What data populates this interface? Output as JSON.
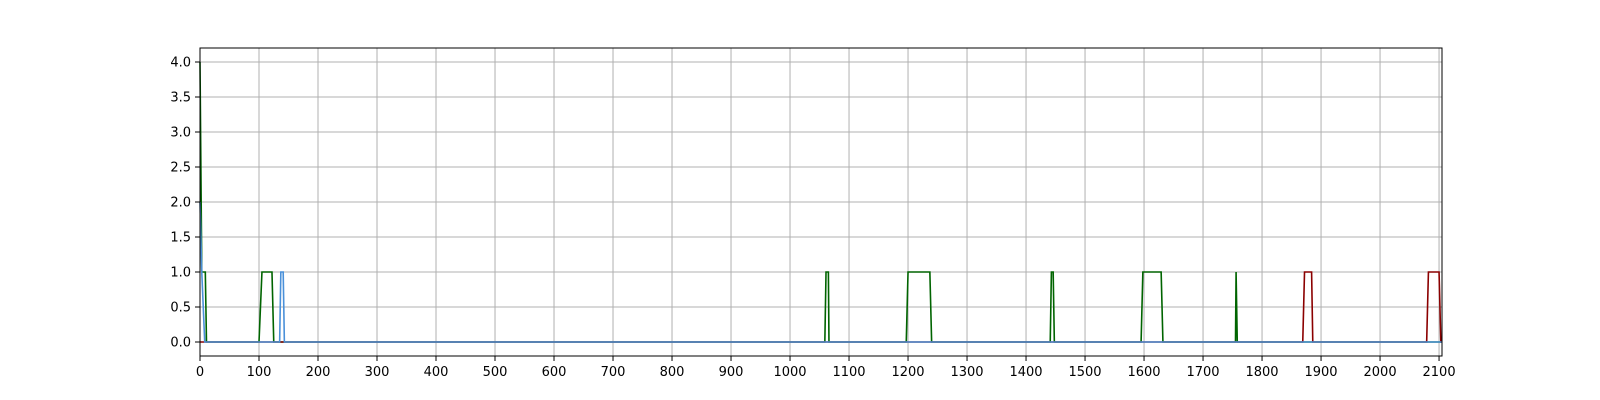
{
  "chart_data": {
    "type": "line",
    "title": "",
    "xlabel": "",
    "ylabel": "",
    "xlim": [
      0,
      2105
    ],
    "ylim": [
      -0.2,
      4.2
    ],
    "grid": true,
    "legend": "none",
    "x_ticks": [
      0,
      100,
      200,
      300,
      400,
      500,
      600,
      700,
      800,
      900,
      1000,
      1100,
      1200,
      1300,
      1400,
      1500,
      1600,
      1700,
      1800,
      1900,
      2000,
      2100
    ],
    "y_ticks": [
      0.0,
      0.5,
      1.0,
      1.5,
      2.0,
      2.5,
      3.0,
      3.5,
      4.0
    ],
    "y_tick_labels": [
      "0.0",
      "0.5",
      "1.0",
      "1.5",
      "2.0",
      "2.5",
      "3.0",
      "3.5",
      "4.0"
    ],
    "series": [
      {
        "color": "#006400",
        "points": [
          [
            0,
            4.0
          ],
          [
            3,
            1.0
          ],
          [
            9,
            1.0
          ],
          [
            11,
            0
          ],
          [
            100,
            0
          ],
          [
            105,
            1.0
          ],
          [
            122,
            1.0
          ],
          [
            125,
            0
          ],
          [
            1059,
            0
          ],
          [
            1061,
            1.0
          ],
          [
            1065,
            1.0
          ],
          [
            1066,
            0
          ],
          [
            1197,
            0
          ],
          [
            1200,
            1.0
          ],
          [
            1237,
            1.0
          ],
          [
            1240,
            0
          ],
          [
            1441,
            0
          ],
          [
            1443,
            1.0
          ],
          [
            1446,
            1.0
          ],
          [
            1448,
            0
          ],
          [
            1595,
            0
          ],
          [
            1598,
            1.0
          ],
          [
            1629,
            1.0
          ],
          [
            1632,
            0
          ],
          [
            1755,
            0
          ],
          [
            1756,
            1.0
          ],
          [
            1758,
            0
          ],
          [
            2105,
            0
          ]
        ]
      },
      {
        "color": "#8B0000",
        "points": [
          [
            0,
            0
          ],
          [
            1869,
            0
          ],
          [
            1872,
            1.0
          ],
          [
            1884,
            1.0
          ],
          [
            1886,
            0
          ],
          [
            2079,
            0
          ],
          [
            2082,
            1.0
          ],
          [
            2100,
            1.0
          ],
          [
            2103,
            0
          ],
          [
            2105,
            0
          ]
        ]
      },
      {
        "color": "#4A90D9",
        "points": [
          [
            0,
            2.0
          ],
          [
            3,
            1.0
          ],
          [
            8,
            0
          ],
          [
            135,
            0
          ],
          [
            137,
            1.0
          ],
          [
            141,
            1.0
          ],
          [
            143,
            0
          ],
          [
            2105,
            0
          ]
        ]
      }
    ]
  }
}
